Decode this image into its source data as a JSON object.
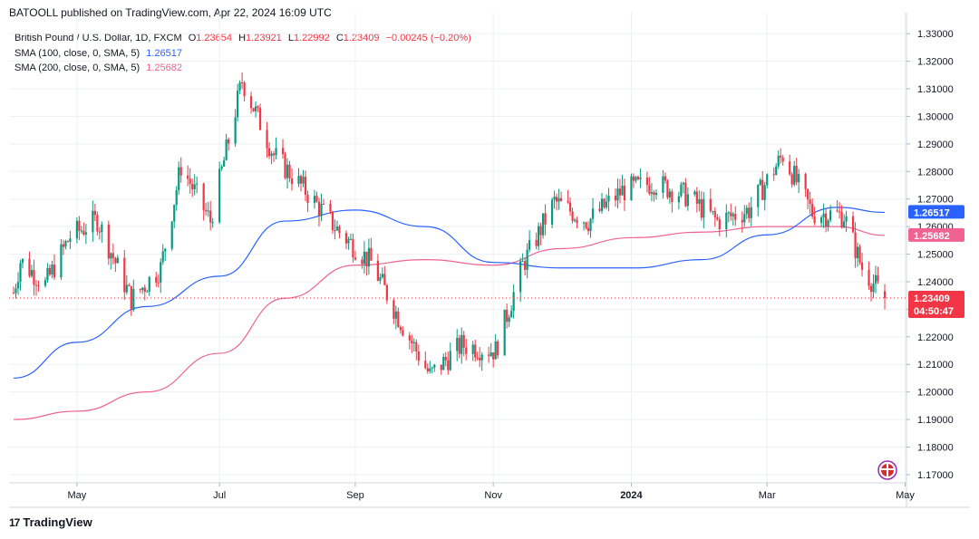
{
  "header": {
    "publisher": "BATOOLL published on TradingView.com, Apr 22, 2024 16:09 UTC"
  },
  "legend": {
    "symbol": "British Pound / U.S. Dollar, 1D, FXCM",
    "o_label": "O",
    "o_value": "1.23654",
    "h_label": "H",
    "h_value": "1.23921",
    "l_label": "L",
    "l_value": "1.22992",
    "c_label": "C",
    "c_value": "1.23409",
    "change": "−0.00245 (−0.20%)",
    "sma100_label": "SMA (100, close, 0, SMA, 5)",
    "sma100_value": "1.26517",
    "sma200_label": "SMA (200, close, 0, SMA, 5)",
    "sma200_value": "1.25682"
  },
  "badges": {
    "sma100": "1.26517",
    "sma200": "1.25682",
    "price": "1.23409",
    "countdown": "04:50:47"
  },
  "footer": {
    "logo_text": "TradingView",
    "logo_mark": "17"
  },
  "colors": {
    "up": "#089981",
    "down": "#f23645",
    "sma100": "#2962ff",
    "sma200": "#f06292",
    "grid": "#eef0f3",
    "price_badge": "#f23645",
    "sma100_badge": "#2962ff",
    "sma200_badge": "#f06292"
  },
  "chart_data": {
    "type": "candlestick",
    "symbol": "GBPUSD",
    "timeframe": "1D",
    "ylim": [
      1.168,
      1.335
    ],
    "y_ticks": [
      "1.17000",
      "1.18000",
      "1.19000",
      "1.20000",
      "1.21000",
      "1.22000",
      "1.23000",
      "1.24000",
      "1.25000",
      "1.26000",
      "1.27000",
      "1.28000",
      "1.29000",
      "1.30000",
      "1.31000",
      "1.32000",
      "1.33000"
    ],
    "x_ticks": [
      "May",
      "Jul",
      "Sep",
      "Nov",
      "2024",
      "Mar",
      "May"
    ],
    "last_close": 1.23409,
    "close_path": [
      {
        "date": "2023-04-03",
        "close": 1.236
      },
      {
        "date": "2023-04-06",
        "close": 1.2476
      },
      {
        "date": "2023-04-17",
        "close": 1.239
      },
      {
        "date": "2023-04-28",
        "close": 1.2565
      },
      {
        "date": "2023-05-10",
        "close": 1.2625
      },
      {
        "date": "2023-05-25",
        "close": 1.2335
      },
      {
        "date": "2023-06-07",
        "close": 1.245
      },
      {
        "date": "2023-06-16",
        "close": 1.282
      },
      {
        "date": "2023-06-29",
        "close": 1.262
      },
      {
        "date": "2023-07-13",
        "close": 1.313
      },
      {
        "date": "2023-07-27",
        "close": 1.286
      },
      {
        "date": "2023-08-10",
        "close": 1.273
      },
      {
        "date": "2023-08-25",
        "close": 1.258
      },
      {
        "date": "2023-09-08",
        "close": 1.247
      },
      {
        "date": "2023-09-22",
        "close": 1.224
      },
      {
        "date": "2023-10-04",
        "close": 1.206
      },
      {
        "date": "2023-10-18",
        "close": 1.217
      },
      {
        "date": "2023-11-02",
        "close": 1.215
      },
      {
        "date": "2023-11-14",
        "close": 1.246
      },
      {
        "date": "2023-11-28",
        "close": 1.269
      },
      {
        "date": "2023-12-13",
        "close": 1.262
      },
      {
        "date": "2023-12-28",
        "close": 1.273
      },
      {
        "date": "2024-01-11",
        "close": 1.276
      },
      {
        "date": "2024-01-26",
        "close": 1.271
      },
      {
        "date": "2024-02-08",
        "close": 1.262
      },
      {
        "date": "2024-02-22",
        "close": 1.266
      },
      {
        "date": "2024-03-08",
        "close": 1.286
      },
      {
        "date": "2024-03-21",
        "close": 1.265
      },
      {
        "date": "2024-04-04",
        "close": 1.264
      },
      {
        "date": "2024-04-12",
        "close": 1.245
      },
      {
        "date": "2024-04-22",
        "close": 1.23409
      }
    ],
    "series": [
      {
        "name": "SMA (100, close, 0, SMA, 5)",
        "last": 1.26517,
        "points": [
          {
            "date": "2023-04-03",
            "v": 1.205
          },
          {
            "date": "2023-05-01",
            "v": 1.218
          },
          {
            "date": "2023-06-01",
            "v": 1.231
          },
          {
            "date": "2023-07-03",
            "v": 1.242
          },
          {
            "date": "2023-08-01",
            "v": 1.262
          },
          {
            "date": "2023-09-01",
            "v": 1.266
          },
          {
            "date": "2023-10-02",
            "v": 1.26
          },
          {
            "date": "2023-11-01",
            "v": 1.247
          },
          {
            "date": "2023-12-01",
            "v": 1.245
          },
          {
            "date": "2024-01-02",
            "v": 1.245
          },
          {
            "date": "2024-02-01",
            "v": 1.248
          },
          {
            "date": "2024-03-01",
            "v": 1.257
          },
          {
            "date": "2024-04-01",
            "v": 1.267
          },
          {
            "date": "2024-04-22",
            "v": 1.26517
          }
        ]
      },
      {
        "name": "SMA (200, close, 0, SMA, 5)",
        "last": 1.25682,
        "points": [
          {
            "date": "2023-04-03",
            "v": 1.19
          },
          {
            "date": "2023-05-01",
            "v": 1.193
          },
          {
            "date": "2023-06-01",
            "v": 1.2
          },
          {
            "date": "2023-07-03",
            "v": 1.214
          },
          {
            "date": "2023-08-01",
            "v": 1.234
          },
          {
            "date": "2023-09-01",
            "v": 1.246
          },
          {
            "date": "2023-10-02",
            "v": 1.248
          },
          {
            "date": "2023-11-01",
            "v": 1.246
          },
          {
            "date": "2023-12-01",
            "v": 1.252
          },
          {
            "date": "2024-01-02",
            "v": 1.256
          },
          {
            "date": "2024-02-01",
            "v": 1.258
          },
          {
            "date": "2024-03-01",
            "v": 1.26
          },
          {
            "date": "2024-04-01",
            "v": 1.26
          },
          {
            "date": "2024-04-22",
            "v": 1.25682
          }
        ]
      }
    ]
  }
}
